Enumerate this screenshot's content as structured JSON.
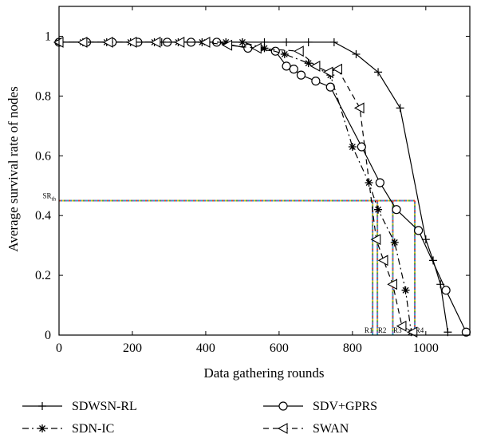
{
  "chart_data": {
    "type": "line",
    "xlabel": "Data gathering rounds",
    "ylabel": "Average survival rate of nodes",
    "xlim": [
      0,
      1120
    ],
    "ylim": [
      0,
      1.1
    ],
    "xticks": [
      "0",
      "200",
      "400",
      "600",
      "800",
      "1000"
    ],
    "yticks": [
      "0",
      "0.2",
      "0.4",
      "0.6",
      "0.8",
      "1"
    ],
    "xtick_values": [
      0,
      200,
      400,
      600,
      800,
      1000
    ],
    "ytick_values": [
      0,
      0.2,
      0.4,
      0.6,
      0.8,
      1
    ],
    "threshold": {
      "label_main": "SR",
      "label_sub": "th",
      "value": 0.45
    },
    "round_markers": [
      {
        "label": "R1",
        "x": 855
      },
      {
        "label": "R2",
        "x": 868
      },
      {
        "label": "R3",
        "x": 910
      },
      {
        "label": "R4",
        "x": 970
      }
    ],
    "legend_position": "bottom",
    "series": [
      {
        "name": "SDWSN-RL",
        "line": "solid",
        "marker": "plus",
        "x": [
          0,
          70,
          140,
          210,
          280,
          360,
          430,
          500,
          560,
          620,
          680,
          750,
          810,
          870,
          930,
          1000,
          1020,
          1040,
          1060
        ],
        "y": [
          0.98,
          0.98,
          0.98,
          0.98,
          0.98,
          0.98,
          0.98,
          0.98,
          0.98,
          0.98,
          0.98,
          0.98,
          0.94,
          0.88,
          0.76,
          0.32,
          0.25,
          0.17,
          0.01
        ]
      },
      {
        "name": "SDV+GPRS",
        "line": "solid",
        "marker": "circle",
        "x": [
          0,
          75,
          145,
          215,
          295,
          360,
          430,
          515,
          590,
          620,
          640,
          660,
          700,
          740,
          825,
          875,
          920,
          980,
          1055,
          1110
        ],
        "y": [
          0.98,
          0.98,
          0.98,
          0.98,
          0.98,
          0.98,
          0.98,
          0.96,
          0.95,
          0.9,
          0.89,
          0.87,
          0.85,
          0.83,
          0.63,
          0.51,
          0.42,
          0.35,
          0.15,
          0.01
        ]
      },
      {
        "name": "SDN-IC",
        "line": "dashdot",
        "marker": "star",
        "x": [
          0,
          65,
          130,
          195,
          260,
          325,
          390,
          455,
          500,
          560,
          615,
          680,
          740,
          800,
          845,
          870,
          915,
          945,
          960
        ],
        "y": [
          0.98,
          0.98,
          0.98,
          0.98,
          0.98,
          0.98,
          0.98,
          0.98,
          0.98,
          0.96,
          0.94,
          0.91,
          0.87,
          0.63,
          0.51,
          0.42,
          0.31,
          0.15,
          0.01
        ]
      },
      {
        "name": "SWAN",
        "line": "dashed",
        "marker": "triangle-left",
        "x": [
          0,
          65,
          135,
          200,
          265,
          330,
          400,
          460,
          540,
          655,
          700,
          735,
          760,
          820,
          865,
          885,
          910,
          935,
          965
        ],
        "y": [
          0.98,
          0.98,
          0.98,
          0.98,
          0.98,
          0.98,
          0.98,
          0.97,
          0.96,
          0.95,
          0.9,
          0.88,
          0.89,
          0.76,
          0.32,
          0.25,
          0.17,
          0.03,
          0.01
        ]
      }
    ]
  }
}
